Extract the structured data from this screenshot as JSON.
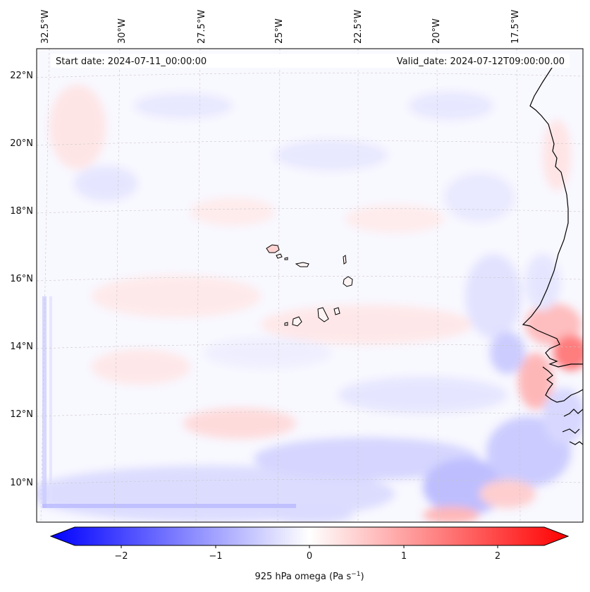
{
  "header": {
    "start_label": "Start date: 2024-07-11_00:00:00",
    "valid_label": "Valid_date: 2024-07-12T09:00:00.00"
  },
  "map": {
    "longitude_labels": [
      "32.5°W",
      "30°W",
      "27.5°W",
      "25°W",
      "22.5°W",
      "20°W",
      "17.5°W"
    ],
    "latitude_labels": [
      "22°N",
      "20°N",
      "18°N",
      "16°N",
      "14°N",
      "12°N",
      "10°N"
    ],
    "features": [
      "Cabo Verde islands",
      "West African coastline"
    ]
  },
  "colorbar": {
    "label": "925 hPa omega (Pa s",
    "label_exponent": "−1",
    "label_close": ")",
    "ticks": [
      "−2",
      "−1",
      "0",
      "1",
      "2"
    ],
    "range": [
      -2.6,
      2.6
    ],
    "colors": {
      "low": "#0000ff",
      "mid": "#ffffff",
      "high": "#ff0000"
    }
  }
}
